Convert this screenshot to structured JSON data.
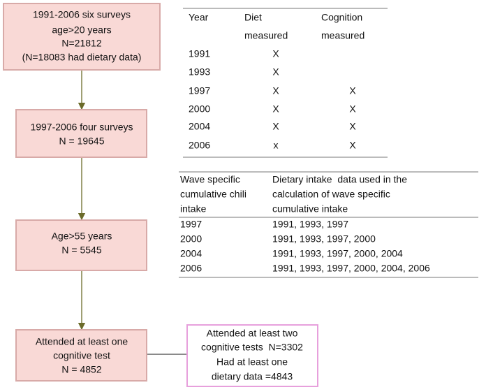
{
  "boxes": [
    {
      "lines": [
        "1991-2006 six surveys",
        "age>20 years",
        "N=21812",
        "(N=18083 had dietary data)"
      ]
    },
    {
      "lines": [
        "1997-2006 four surveys",
        "N = 19645"
      ]
    },
    {
      "lines": [
        "Age>55 years",
        "N = 5545"
      ]
    },
    {
      "lines": [
        "Attended at least one",
        "cognitive test",
        "N = 4852"
      ]
    },
    {
      "lines": [
        "Attended at least two",
        "cognitive tests  N=3302",
        "Had at least one",
        "dietary data =4843"
      ]
    }
  ],
  "survey_table": {
    "header": [
      [
        "Year"
      ],
      [
        "Diet",
        "measured"
      ],
      [
        "Cognition",
        "measured"
      ]
    ],
    "rows": [
      {
        "year": "1991",
        "diet": "X"
      },
      {
        "year": "1993",
        "diet": "X"
      },
      {
        "year": "1997",
        "diet": "X",
        "cognition": "X"
      },
      {
        "year": "2000",
        "diet": "X",
        "cognition": "X"
      },
      {
        "year": "2004",
        "diet": "X",
        "cognition": "X"
      },
      {
        "year": "2006",
        "diet": "x",
        "cognition": "X"
      }
    ]
  },
  "intake_table": {
    "header": [
      [
        "Wave specific",
        "cumulative chili",
        "intake"
      ],
      [
        "Dietary intake  data used in the",
        "calculation of wave specific",
        "cumulative intake"
      ]
    ],
    "rows": [
      [
        "1997",
        "1991, 1993, 1997"
      ],
      [
        "2000",
        "1991, 1993, 1997, 2000"
      ],
      [
        "2004",
        "1991, 1993, 1997, 2000, 2004"
      ],
      [
        "2006",
        "1991, 1993, 1997, 2000, 2004, 2006"
      ]
    ]
  }
}
